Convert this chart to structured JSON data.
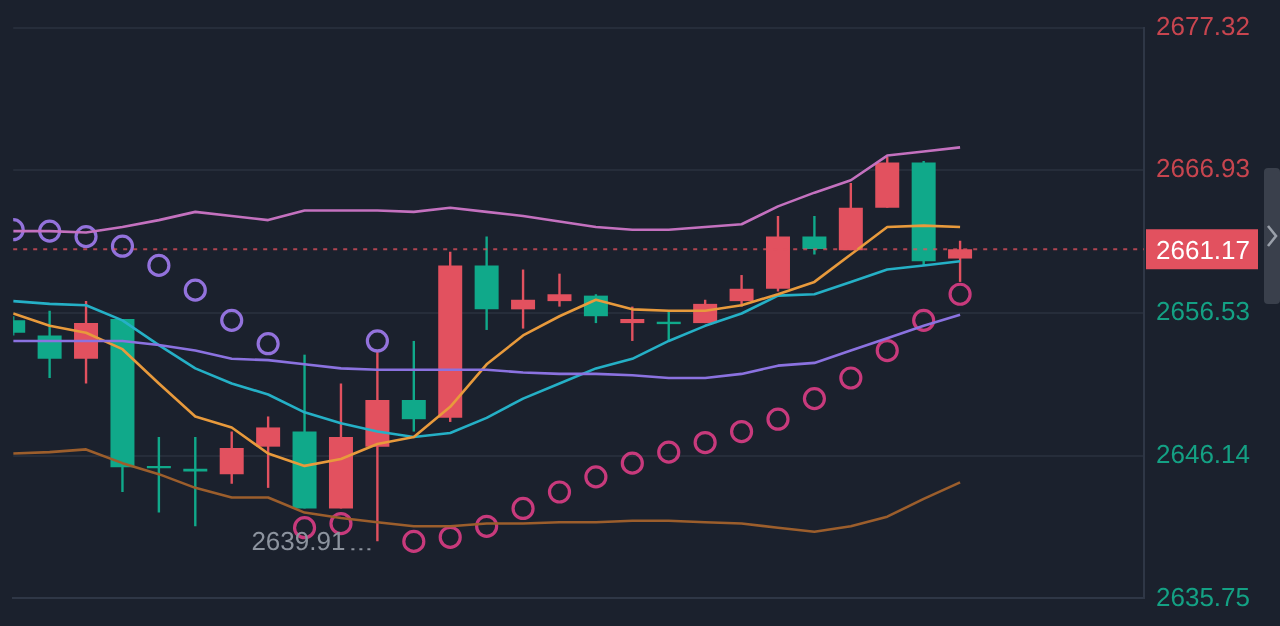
{
  "chart_data": {
    "type": "candlestick",
    "categories": [
      null,
      null,
      null,
      null,
      null,
      null,
      null,
      null,
      null,
      null,
      null,
      null,
      null,
      null,
      null,
      null,
      null,
      null,
      null,
      null,
      null,
      null,
      null,
      null,
      null,
      null,
      null
    ],
    "ohlc": [
      [
        2656.0,
        2656.3,
        2654.9,
        2655.1
      ],
      [
        2654.9,
        2656.7,
        2651.8,
        2653.2
      ],
      [
        2653.2,
        2657.4,
        2651.4,
        2655.8
      ],
      [
        2656.1,
        2656.1,
        2643.5,
        2645.3
      ],
      [
        2645.4,
        2647.5,
        2642.0,
        2645.3
      ],
      [
        2645.2,
        2647.5,
        2641.0,
        2645.0
      ],
      [
        2644.8,
        2647.9,
        2644.1,
        2646.7
      ],
      [
        2646.8,
        2649.0,
        2643.8,
        2648.2
      ],
      [
        2647.9,
        2653.5,
        2642.3,
        2642.3
      ],
      [
        2642.3,
        2651.4,
        2642.3,
        2647.5
      ],
      [
        2646.8,
        2653.8,
        2639.91,
        2650.2
      ],
      [
        2650.2,
        2654.5,
        2647.9,
        2648.8
      ],
      [
        2648.9,
        2661.0,
        2648.6,
        2660.0
      ],
      [
        2660.0,
        2662.1,
        2655.3,
        2656.8
      ],
      [
        2656.8,
        2659.7,
        2655.4,
        2657.5
      ],
      [
        2657.4,
        2659.4,
        2657.0,
        2657.9
      ],
      [
        2657.8,
        2657.9,
        2655.8,
        2656.3
      ],
      [
        2655.8,
        2657.0,
        2654.5,
        2656.1
      ],
      [
        2655.9,
        2656.7,
        2654.5,
        2655.8
      ],
      [
        2655.8,
        2657.5,
        2655.8,
        2657.2
      ],
      [
        2657.4,
        2659.3,
        2657.0,
        2658.3
      ],
      [
        2658.3,
        2663.6,
        2658.1,
        2662.1
      ],
      [
        2662.1,
        2663.6,
        2660.8,
        2661.2
      ],
      [
        2661.1,
        2666.0,
        2661.1,
        2664.2
      ],
      [
        2664.2,
        2667.9,
        2664.2,
        2667.5
      ],
      [
        2667.5,
        2667.6,
        2660.0,
        2660.3
      ],
      [
        2660.5,
        2661.8,
        2658.8,
        2661.17
      ]
    ],
    "colors": [
      "#10a98a",
      "#10a98a",
      "#e2515f",
      "#10a98a",
      "#10a98a",
      "#10a98a",
      "#e2515f",
      "#e2515f",
      "#10a98a",
      "#e2515f",
      "#e2515f",
      "#10a98a",
      "#e2515f",
      "#10a98a",
      "#e2515f",
      "#e2515f",
      "#10a98a",
      "#e2515f",
      "#10a98a",
      "#e2515f",
      "#e2515f",
      "#e2515f",
      "#10a98a",
      "#e2515f",
      "#e2515f",
      "#10a98a",
      "#e2515f"
    ],
    "series": [
      {
        "type": "line",
        "color": "#c471bf",
        "values": [
          2662.5,
          2662.5,
          2662.4,
          2662.8,
          2663.3,
          2663.9,
          2663.6,
          2663.3,
          2664.0,
          2664.0,
          2664.0,
          2663.9,
          2664.2,
          2663.9,
          2663.6,
          2663.2,
          2662.8,
          2662.6,
          2662.6,
          2662.8,
          2663.0,
          2664.3,
          2665.3,
          2666.2,
          2668.0,
          2668.3,
          2668.6
        ]
      },
      {
        "type": "line",
        "color": "#8b72e0",
        "values": [
          2654.5,
          2654.5,
          2654.5,
          2654.5,
          2654.2,
          2653.8,
          2653.2,
          2653.1,
          2652.8,
          2652.5,
          2652.4,
          2652.4,
          2652.4,
          2652.4,
          2652.2,
          2652.1,
          2652.1,
          2652.0,
          2651.8,
          2651.8,
          2652.1,
          2652.7,
          2652.9,
          2653.8,
          2654.7,
          2655.6,
          2656.4
        ]
      },
      {
        "type": "line",
        "color": "#9c5e2c",
        "values": [
          2646.3,
          2646.4,
          2646.6,
          2645.6,
          2644.8,
          2643.8,
          2643.1,
          2643.1,
          2642.0,
          2641.6,
          2641.3,
          2641.0,
          2641.0,
          2641.2,
          2641.2,
          2641.3,
          2641.3,
          2641.4,
          2641.4,
          2641.3,
          2641.2,
          2640.9,
          2640.6,
          2641.0,
          2641.7,
          2643.0,
          2644.2
        ]
      },
      {
        "type": "line",
        "color": "#e89a3c",
        "values": [
          2656.5,
          2655.6,
          2655.1,
          2653.9,
          2651.4,
          2649.0,
          2648.2,
          2646.3,
          2645.4,
          2645.9,
          2647.0,
          2647.5,
          2649.7,
          2652.8,
          2654.9,
          2656.3,
          2657.5,
          2656.8,
          2656.7,
          2656.7,
          2657.1,
          2657.9,
          2658.8,
          2660.8,
          2662.8,
          2662.9,
          2662.8
        ]
      },
      {
        "type": "line",
        "color": "#25b0c6",
        "values": [
          2657.4,
          2657.2,
          2657.1,
          2656.0,
          2654.2,
          2652.5,
          2651.4,
          2650.6,
          2649.3,
          2648.5,
          2647.9,
          2647.5,
          2647.8,
          2648.9,
          2650.3,
          2651.4,
          2652.5,
          2653.2,
          2654.5,
          2655.6,
          2656.5,
          2657.8,
          2657.9,
          2658.8,
          2659.7,
          2660.0,
          2660.3
        ]
      },
      {
        "type": "scatter",
        "marker": "circle",
        "color": "#9372dc",
        "values": [
          2662.6,
          2662.5,
          2662.1,
          2661.4,
          2660.0,
          2658.2,
          2656.0,
          2654.3,
          null,
          null,
          2654.5,
          null,
          null,
          null,
          null,
          null,
          null,
          null,
          null,
          null,
          null,
          null,
          null,
          null,
          null,
          null,
          null
        ]
      },
      {
        "type": "scatter",
        "marker": "circle",
        "color": "#c83a7c",
        "values": [
          null,
          null,
          null,
          null,
          null,
          null,
          null,
          null,
          2640.9,
          2641.2,
          null,
          2639.9,
          2640.2,
          2641.0,
          2642.3,
          2643.5,
          2644.6,
          2645.6,
          2646.4,
          2647.1,
          2647.9,
          2648.8,
          2650.3,
          2651.8,
          2653.8,
          2656.0,
          2657.9
        ]
      }
    ],
    "ylim": [
      2635.75,
      2677.32
    ],
    "yticks": [
      2635.75,
      2646.14,
      2656.53,
      2666.93,
      2677.32
    ],
    "ref_lines": [
      {
        "axis": "y",
        "value": 2661.17,
        "label": "2661.17",
        "color": "#e2515f",
        "line_style": "dotted"
      }
    ],
    "annotations": [
      {
        "text": "2639.91",
        "y": 2639.91
      }
    ],
    "grid": "y",
    "tick_labels": "y"
  }
}
